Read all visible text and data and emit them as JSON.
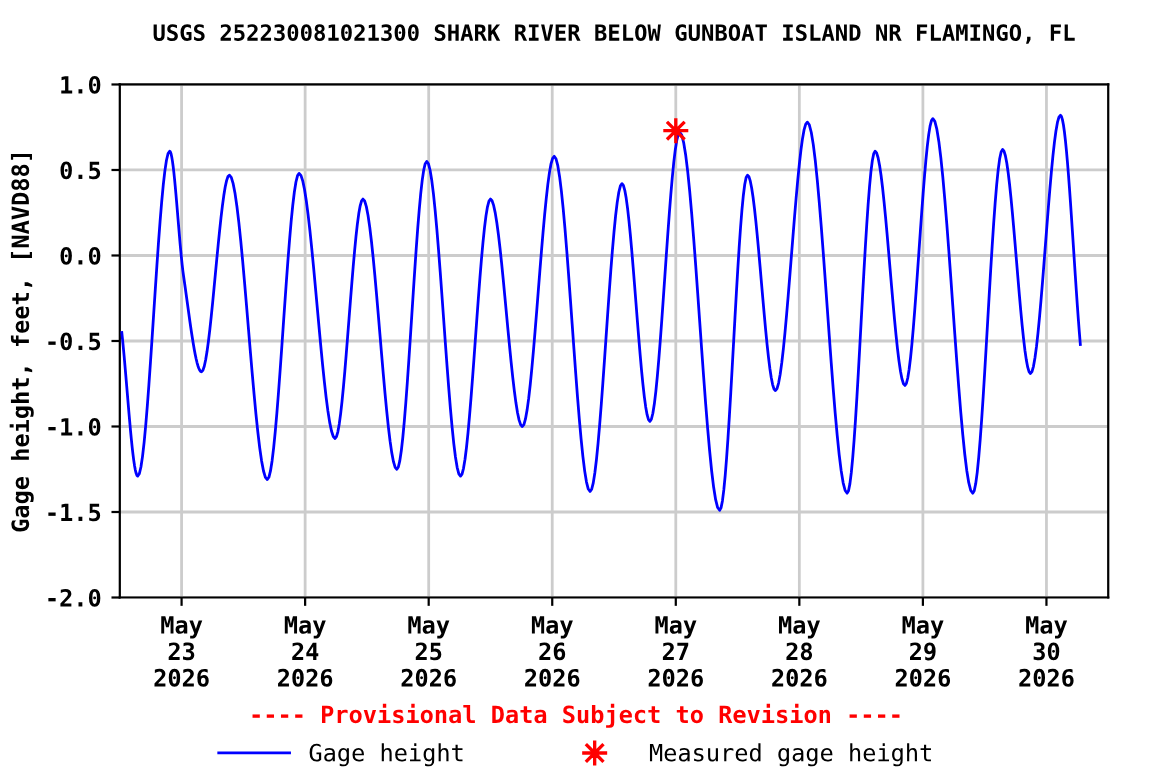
{
  "chart_data": {
    "type": "line",
    "title": "USGS 252230081021300 SHARK RIVER BELOW GUNBOAT ISLAND NR FLAMINGO, FL",
    "ylabel": "Gage height, feet, [NAVD88]",
    "series": [
      {
        "name": "Gage height",
        "color": "#0000ff",
        "marker": "none",
        "x": [
          "2026-05-22T12:23",
          "2026-05-22T15:29",
          "2026-05-22T21:41",
          "2026-05-23T00:23",
          "2026-05-23T03:52",
          "2026-05-23T09:17",
          "2026-05-23T16:39",
          "2026-05-23T22:50",
          "2026-05-24T05:49",
          "2026-05-24T11:14",
          "2026-05-24T17:49",
          "2026-05-24T23:37",
          "2026-05-25T06:11",
          "2026-05-25T12:00",
          "2026-05-25T18:11",
          "2026-05-26T00:23",
          "2026-05-26T07:21",
          "2026-05-26T13:33",
          "2026-05-26T18:58",
          "2026-05-27T00:46",
          "2026-05-27T08:31",
          "2026-05-27T13:56",
          "2026-05-27T19:21",
          "2026-05-28T01:33",
          "2026-05-28T09:17",
          "2026-05-28T14:43",
          "2026-05-28T20:31",
          "2026-05-29T01:56",
          "2026-05-29T09:41",
          "2026-05-29T15:29",
          "2026-05-29T20:54",
          "2026-05-30T02:43",
          "2026-05-30T06:35"
        ],
        "values": [
          -0.45,
          -1.29,
          0.61,
          -0.12,
          -0.68,
          0.47,
          -1.31,
          0.48,
          -1.07,
          0.33,
          -1.25,
          0.55,
          -1.29,
          0.33,
          -1.0,
          0.58,
          -1.38,
          0.42,
          -0.97,
          0.72,
          -1.49,
          0.47,
          -0.79,
          0.78,
          -1.39,
          0.61,
          -0.76,
          0.8,
          -1.39,
          0.62,
          -0.69,
          0.82,
          -0.52
        ]
      },
      {
        "name": "Measured gage height",
        "color": "#ff0000",
        "type": "scatter",
        "marker": "star",
        "x": [
          "2026-05-27T00:00"
        ],
        "values": [
          0.73
        ]
      }
    ],
    "xlim": [
      "2026-05-22T12:00",
      "2026-05-30T12:00"
    ],
    "xticks": [
      {
        "value": "2026-05-23",
        "label": "May\n23\n2026"
      },
      {
        "value": "2026-05-24",
        "label": "May\n24\n2026"
      },
      {
        "value": "2026-05-25",
        "label": "May\n25\n2026"
      },
      {
        "value": "2026-05-26",
        "label": "May\n26\n2026"
      },
      {
        "value": "2026-05-27",
        "label": "May\n27\n2026"
      },
      {
        "value": "2026-05-28",
        "label": "May\n28\n2026"
      },
      {
        "value": "2026-05-29",
        "label": "May\n29\n2026"
      },
      {
        "value": "2026-05-30",
        "label": "May\n30\n2026"
      }
    ],
    "ylim": [
      -2.0,
      1.0
    ],
    "yticks": [
      {
        "value": -2,
        "label": "-2.0"
      },
      {
        "value": -1.5,
        "label": "-1.5"
      },
      {
        "value": -1,
        "label": "-1.0"
      },
      {
        "value": -0.5,
        "label": "-0.5"
      },
      {
        "value": 0,
        "label": "0.0"
      },
      {
        "value": 0.5,
        "label": "0.5"
      },
      {
        "value": 1,
        "label": "1.0"
      }
    ],
    "grid": true,
    "legend": "bottom",
    "annotations": [
      "---- Provisional Data Subject to Revision ----"
    ]
  }
}
